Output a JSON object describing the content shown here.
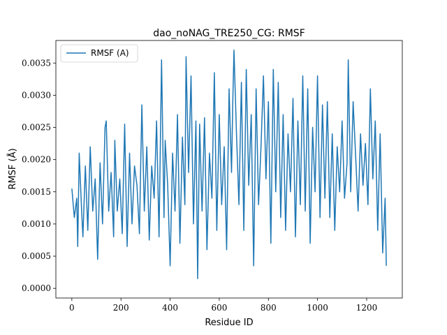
{
  "chart_data": {
    "type": "line",
    "title": "dao_noNAG_TRE250_CG: RMSF",
    "xlabel": "Residue ID",
    "ylabel": "RMSF (Å)",
    "xlim": [
      -65,
      1345
    ],
    "ylim": [
      -0.00015,
      0.00385
    ],
    "xticks": [
      0,
      200,
      400,
      600,
      800,
      1000,
      1200
    ],
    "xtick_labels": [
      "0",
      "200",
      "400",
      "600",
      "800",
      "1000",
      "1200"
    ],
    "yticks": [
      0.0,
      0.0005,
      0.001,
      0.0015,
      0.002,
      0.0025,
      0.003,
      0.0035
    ],
    "ytick_labels": [
      "0.0000",
      "0.0005",
      "0.0010",
      "0.0015",
      "0.0020",
      "0.0025",
      "0.0030",
      "0.0035"
    ],
    "grid": false,
    "legend_position": "top-left",
    "colors": {
      "line": "#1f77b4",
      "axes": "#000000",
      "legend_border": "#cccccc"
    },
    "series": [
      {
        "name": "RMSF (A)",
        "x": [
          0,
          10,
          20,
          24,
          30,
          40,
          45,
          55,
          65,
          75,
          85,
          95,
          105,
          115,
          125,
          135,
          140,
          150,
          160,
          170,
          175,
          185,
          195,
          205,
          215,
          225,
          235,
          245,
          255,
          265,
          275,
          285,
          295,
          305,
          315,
          325,
          335,
          345,
          355,
          365,
          375,
          380,
          390,
          400,
          410,
          420,
          430,
          440,
          450,
          460,
          465,
          475,
          485,
          495,
          505,
          512,
          520,
          530,
          540,
          550,
          560,
          570,
          580,
          590,
          600,
          610,
          620,
          630,
          640,
          650,
          655,
          660,
          670,
          680,
          690,
          700,
          710,
          720,
          730,
          740,
          750,
          760,
          770,
          780,
          790,
          800,
          810,
          820,
          830,
          840,
          850,
          860,
          870,
          880,
          890,
          900,
          910,
          920,
          930,
          940,
          950,
          960,
          970,
          980,
          990,
          1000,
          1010,
          1020,
          1030,
          1040,
          1050,
          1060,
          1070,
          1080,
          1090,
          1100,
          1110,
          1120,
          1125,
          1135,
          1145,
          1155,
          1165,
          1175,
          1185,
          1195,
          1205,
          1215,
          1225,
          1235,
          1245,
          1255,
          1265,
          1275,
          1280
        ],
        "y": [
          0.00155,
          0.0011,
          0.0014,
          0.00065,
          0.0021,
          0.0012,
          0.0008,
          0.0019,
          0.0009,
          0.0022,
          0.0012,
          0.0017,
          0.00045,
          0.00195,
          0.001,
          0.0025,
          0.0026,
          0.0012,
          0.0018,
          0.0008,
          0.0023,
          0.0012,
          0.0017,
          0.00085,
          0.00255,
          0.00065,
          0.0021,
          0.001,
          0.0019,
          0.0016,
          0.00085,
          0.00285,
          0.0012,
          0.0022,
          0.00075,
          0.0019,
          0.0014,
          0.0026,
          0.0008,
          0.00355,
          0.0011,
          0.0023,
          0.0016,
          0.00035,
          0.0021,
          0.0012,
          0.0027,
          0.0007,
          0.00235,
          0.0013,
          0.0036,
          0.0018,
          0.0033,
          0.001,
          0.0026,
          0.00015,
          0.00255,
          0.0012,
          0.00265,
          0.0006,
          0.0021,
          0.0014,
          0.00335,
          0.0009,
          0.0027,
          0.0013,
          0.0022,
          0.0006,
          0.0031,
          0.0018,
          0.0029,
          0.0037,
          0.0024,
          0.0013,
          0.0032,
          0.0009,
          0.0034,
          0.0016,
          0.0027,
          0.00035,
          0.0031,
          0.0013,
          0.0022,
          0.0033,
          0.0017,
          0.0029,
          0.0007,
          0.0034,
          0.0015,
          0.0032,
          0.0011,
          0.0027,
          0.0009,
          0.0024,
          0.0015,
          0.00295,
          0.0008,
          0.0026,
          0.0013,
          0.0033,
          0.0012,
          0.0031,
          0.0007,
          0.0025,
          0.0015,
          0.0033,
          0.0011,
          0.00285,
          0.0014,
          0.0029,
          0.0011,
          0.0024,
          0.0009,
          0.0022,
          0.0015,
          0.0026,
          0.0014,
          0.00195,
          0.00355,
          0.0015,
          0.0029,
          0.00205,
          0.0012,
          0.0024,
          0.0016,
          0.00225,
          0.0013,
          0.0031,
          0.0017,
          0.0026,
          0.0009,
          0.0024,
          0.00055,
          0.0014,
          0.00035
        ]
      }
    ]
  }
}
